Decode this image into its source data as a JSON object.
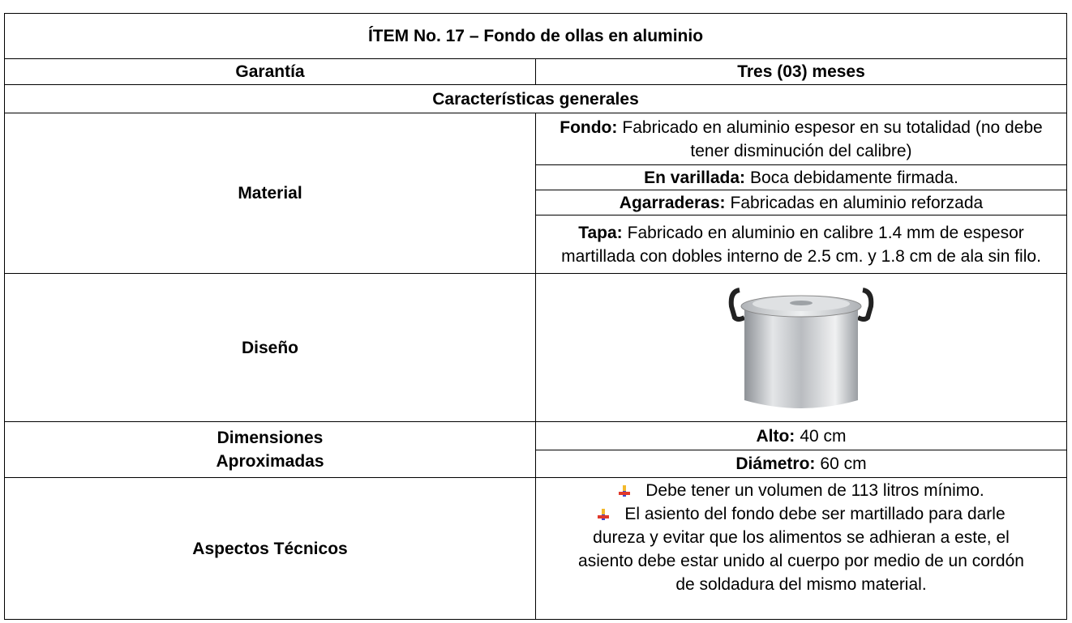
{
  "title": "ÍTEM No. 17 – Fondo de ollas en aluminio",
  "warranty": {
    "label": "Garantía",
    "value": "Tres (03) meses"
  },
  "section": "Características generales",
  "material": {
    "label": "Material",
    "items": [
      {
        "term": "Fondo:",
        "text": "Fabricado en aluminio espesor en su totalidad (no debe tener disminución del calibre)"
      },
      {
        "term": "En varillada:",
        "text": "Boca debidamente firmada."
      },
      {
        "term": "Agarraderas:",
        "text": "Fabricadas en aluminio reforzada"
      },
      {
        "term": "Tapa:",
        "text": "Fabricado en aluminio en calibre 1.4 mm de espesor martillada con dobles interno de 2.5 cm. y 1.8 cm de ala sin filo."
      }
    ]
  },
  "design": {
    "label": "Diseño"
  },
  "dimensions": {
    "label": [
      "Dimensiones",
      "Aproximadas"
    ],
    "items": [
      {
        "term": "Alto:",
        "text": "40 cm"
      },
      {
        "term": "Diámetro:",
        "text": "60 cm"
      }
    ]
  },
  "technical": {
    "label": "Aspectos Técnicos",
    "bullets": [
      "Debe tener un volumen de 113 litros mínimo.",
      "El asiento del fondo debe ser martillado para darle dureza y evitar que los alimentos se adhieran a este, el asiento debe estar unido al cuerpo por medio de un cordón de soldadura del mismo material."
    ]
  }
}
